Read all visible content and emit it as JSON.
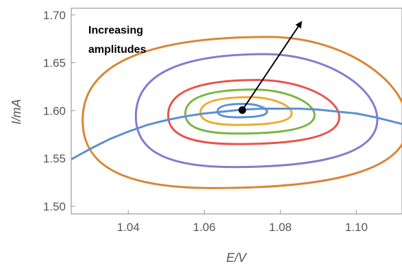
{
  "chart_data": {
    "type": "line",
    "title": "",
    "xlabel": "E/V",
    "ylabel": "I/mA",
    "xlim": [
      1.025,
      1.112
    ],
    "ylim": [
      1.492,
      1.707
    ],
    "xticks": [
      {
        "value": 1.04,
        "label": "1.04"
      },
      {
        "value": 1.06,
        "label": "1.06"
      },
      {
        "value": 1.08,
        "label": "1.08"
      },
      {
        "value": 1.1,
        "label": "1.10"
      }
    ],
    "yticks": [
      {
        "value": 1.5,
        "label": "1.50"
      },
      {
        "value": 1.55,
        "label": "1.55"
      },
      {
        "value": 1.6,
        "label": "1.60"
      },
      {
        "value": 1.65,
        "label": "1.65"
      },
      {
        "value": 1.7,
        "label": "1.70"
      }
    ],
    "grid": false,
    "nullcline": {
      "color": "#5b8fd1",
      "points": [
        [
          1.025,
          1.549
        ],
        [
          1.03,
          1.56
        ],
        [
          1.035,
          1.57
        ],
        [
          1.04,
          1.578
        ],
        [
          1.045,
          1.585
        ],
        [
          1.05,
          1.59
        ],
        [
          1.055,
          1.594
        ],
        [
          1.06,
          1.597
        ],
        [
          1.065,
          1.599
        ],
        [
          1.07,
          1.601
        ],
        [
          1.075,
          1.602
        ],
        [
          1.08,
          1.602
        ],
        [
          1.085,
          1.602
        ],
        [
          1.09,
          1.601
        ],
        [
          1.095,
          1.599
        ],
        [
          1.1,
          1.597
        ],
        [
          1.105,
          1.593
        ],
        [
          1.112,
          1.586
        ]
      ]
    },
    "limit_cycles": [
      {
        "color": "#5b8fd1",
        "left": 1.0635,
        "right": 1.0765,
        "top": 1.607,
        "bottom": 1.593,
        "peak_x": 1.0705
      },
      {
        "color": "#f0a830",
        "left": 1.059,
        "right": 1.083,
        "top": 1.614,
        "bottom": 1.585,
        "peak_x": 1.072
      },
      {
        "color": "#7ab542",
        "left": 1.055,
        "right": 1.089,
        "top": 1.622,
        "bottom": 1.576,
        "peak_x": 1.073
      },
      {
        "color": "#e8534a",
        "left": 1.0505,
        "right": 1.0955,
        "top": 1.632,
        "bottom": 1.565,
        "peak_x": 1.074
      },
      {
        "color": "#8a78cf",
        "left": 1.042,
        "right": 1.1055,
        "top": 1.659,
        "bottom": 1.541,
        "peak_x": 1.076
      },
      {
        "color": "#d98532",
        "left": 1.028,
        "right": 1.1135,
        "top": 1.677,
        "bottom": 1.519,
        "peak_x": 1.077
      }
    ],
    "fixed_point": {
      "x": 1.07,
      "y": 1.6005
    },
    "arrow": {
      "from": [
        1.07,
        1.6005
      ],
      "to": [
        1.0855,
        1.6925
      ]
    },
    "annotation": {
      "line1": "Increasing",
      "line2": "amplitudes"
    }
  }
}
